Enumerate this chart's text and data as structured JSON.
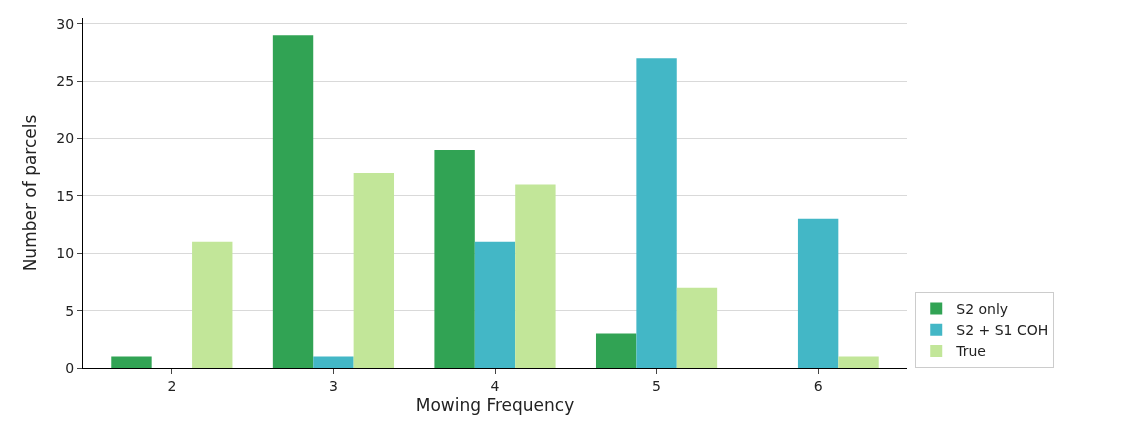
{
  "chart_data": {
    "type": "bar",
    "xlabel": "Mowing Frequency",
    "ylabel": "Number of parcels",
    "categories": [
      "2",
      "3",
      "4",
      "5",
      "6"
    ],
    "series": [
      {
        "name": "S2 only",
        "color": "#31a354",
        "values": [
          1,
          29,
          19,
          3,
          0
        ]
      },
      {
        "name": "S2 + S1 COH",
        "color": "#43b7c6",
        "values": [
          0,
          1,
          11,
          27,
          13
        ]
      },
      {
        "name": "True",
        "color": "#c2e699",
        "values": [
          11,
          17,
          16,
          7,
          1
        ]
      }
    ],
    "ylim": [
      0,
      30.5
    ],
    "yticks": [
      0,
      5,
      10,
      15,
      20,
      25,
      30
    ],
    "grid": "y",
    "legend": "bottom right"
  }
}
